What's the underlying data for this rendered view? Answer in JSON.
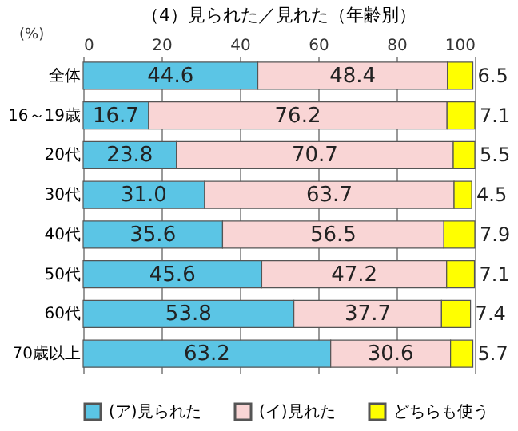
{
  "chart_data": {
    "type": "bar",
    "orientation": "horizontal",
    "stacked": true,
    "title": "（4）見られた／見れた（年齢別）",
    "categories": [
      "全体",
      "16～19歳",
      "20代",
      "30代",
      "40代",
      "50代",
      "60代",
      "70歳以上"
    ],
    "series": [
      {
        "name": "(ア)見られた",
        "color": "#5bc5e5",
        "values": [
          44.6,
          16.7,
          23.8,
          31.0,
          35.6,
          45.6,
          53.8,
          63.2
        ],
        "value_labels": [
          "44.6",
          "16.7",
          "23.8",
          "31.0",
          "35.6",
          "45.6",
          "53.8",
          "63.2"
        ]
      },
      {
        "name": "(イ)見れた",
        "color": "#f9d5d5",
        "values": [
          48.4,
          76.2,
          70.7,
          63.7,
          56.5,
          47.2,
          37.7,
          30.6
        ],
        "value_labels": [
          "48.4",
          "76.2",
          "70.7",
          "63.7",
          "56.5",
          "47.2",
          "37.7",
          "30.6"
        ]
      },
      {
        "name": "どちらも使う",
        "color": "#ffff00",
        "values": [
          6.5,
          7.1,
          5.5,
          4.5,
          7.9,
          7.1,
          7.4,
          5.7
        ],
        "value_labels": [
          "6.5",
          "7.1",
          "5.5",
          "4.5",
          "7.9",
          "7.1",
          "7.4",
          "5.7"
        ]
      }
    ],
    "xlim": [
      0,
      100
    ],
    "xticks": [
      0,
      20,
      40,
      60,
      80,
      100
    ],
    "grid": "x",
    "legend": "bottom",
    "annotations": [
      "(%)"
    ]
  }
}
